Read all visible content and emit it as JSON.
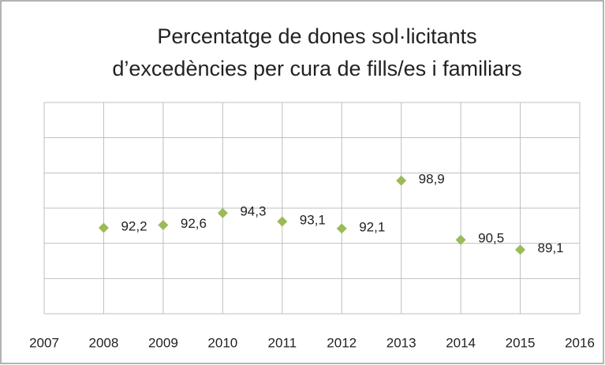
{
  "chart_data": {
    "type": "scatter",
    "title": [
      "Percentatge de dones sol·licitants",
      "d’excedències per cura de fills/es i familiars"
    ],
    "x": [
      2008,
      2009,
      2010,
      2011,
      2012,
      2013,
      2014,
      2015
    ],
    "values": [
      92.2,
      92.6,
      94.3,
      93.1,
      92.1,
      98.9,
      90.5,
      89.1
    ],
    "value_labels": [
      "92,2",
      "92,6",
      "94,3",
      "93,1",
      "92,1",
      "98,9",
      "90,5",
      "89,1"
    ],
    "color": "#9bbb59",
    "xlim": [
      2007,
      2016
    ],
    "xticks": [
      2007,
      2008,
      2009,
      2010,
      2011,
      2012,
      2013,
      2014,
      2015,
      2016
    ],
    "ylim": [
      80,
      110
    ],
    "yticks": [
      80,
      85,
      90,
      95,
      100,
      105,
      110
    ],
    "grid": true
  }
}
